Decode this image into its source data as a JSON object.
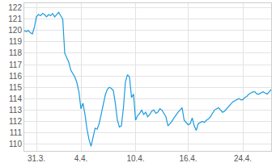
{
  "chart_data": {
    "type": "line",
    "color": "#1a9be0",
    "grid": true,
    "categories": [
      null,
      null,
      null,
      null,
      null,
      null,
      "31.3.",
      null,
      null,
      null,
      null,
      null,
      null,
      null,
      null,
      null,
      null,
      null,
      null,
      null,
      null,
      null,
      null,
      null,
      null,
      null,
      null,
      null,
      "4.4.",
      null,
      null,
      null,
      null,
      null,
      null,
      null,
      null,
      null,
      null,
      null,
      null,
      null,
      null,
      null,
      null,
      null,
      null,
      null,
      null,
      null,
      null,
      null,
      null,
      null,
      null,
      "10.4.",
      null,
      null,
      null,
      null,
      null,
      null,
      null,
      null,
      null,
      null,
      null,
      null,
      null,
      null,
      null,
      null,
      null,
      null,
      null,
      null,
      null,
      null,
      null,
      null,
      null,
      "16.4.",
      null,
      null,
      null,
      null,
      null,
      null,
      null,
      null,
      null,
      null,
      null,
      null,
      null,
      null,
      null,
      null,
      null,
      null,
      null,
      null,
      null,
      null,
      null,
      null,
      null,
      null,
      "24.4.",
      null,
      null,
      null,
      null,
      null,
      null,
      null,
      null,
      null,
      null,
      null,
      null,
      null,
      null
    ],
    "values": [
      120.0,
      119.9,
      120.0,
      119.8,
      119.7,
      120.3,
      121.2,
      121.4,
      121.3,
      121.5,
      121.4,
      121.2,
      121.4,
      121.3,
      121.5,
      121.2,
      121.4,
      121.6,
      121.3,
      121.0,
      118.0,
      117.6,
      117.2,
      116.5,
      116.2,
      115.9,
      115.4,
      114.6,
      113.1,
      113.6,
      112.6,
      111.3,
      110.4,
      109.8,
      110.6,
      111.4,
      111.3,
      111.8,
      112.6,
      113.5,
      114.3,
      114.8,
      115.0,
      114.9,
      114.7,
      113.6,
      112.1,
      111.5,
      111.6,
      113.2,
      115.5,
      116.1,
      115.9,
      114.1,
      114.4,
      112.1,
      112.5,
      112.7,
      113.0,
      112.6,
      112.8,
      112.4,
      112.6,
      112.9,
      113.0,
      112.7,
      112.8,
      113.1,
      113.0,
      112.7,
      112.4,
      111.6,
      111.8,
      112.0,
      112.3,
      112.6,
      112.8,
      113.0,
      113.2,
      112.1,
      111.9,
      111.7,
      111.8,
      112.3,
      111.6,
      111.2,
      111.8,
      111.9,
      112.0,
      111.9,
      112.1,
      112.2,
      112.4,
      112.7,
      113.0,
      113.1,
      113.2,
      113.0,
      112.8,
      112.9,
      113.1,
      113.3,
      113.5,
      113.7,
      113.8,
      113.9,
      114.0,
      113.9,
      113.9,
      114.1,
      114.2,
      114.4,
      114.5,
      114.6,
      114.6,
      114.4,
      114.4,
      114.5,
      114.6,
      114.5,
      114.4,
      114.6,
      114.8
    ],
    "ylim": [
      109.4,
      122.4
    ],
    "yticks": [
      110,
      111,
      112,
      113,
      114,
      115,
      116,
      117,
      118,
      119,
      120,
      121,
      122
    ]
  }
}
